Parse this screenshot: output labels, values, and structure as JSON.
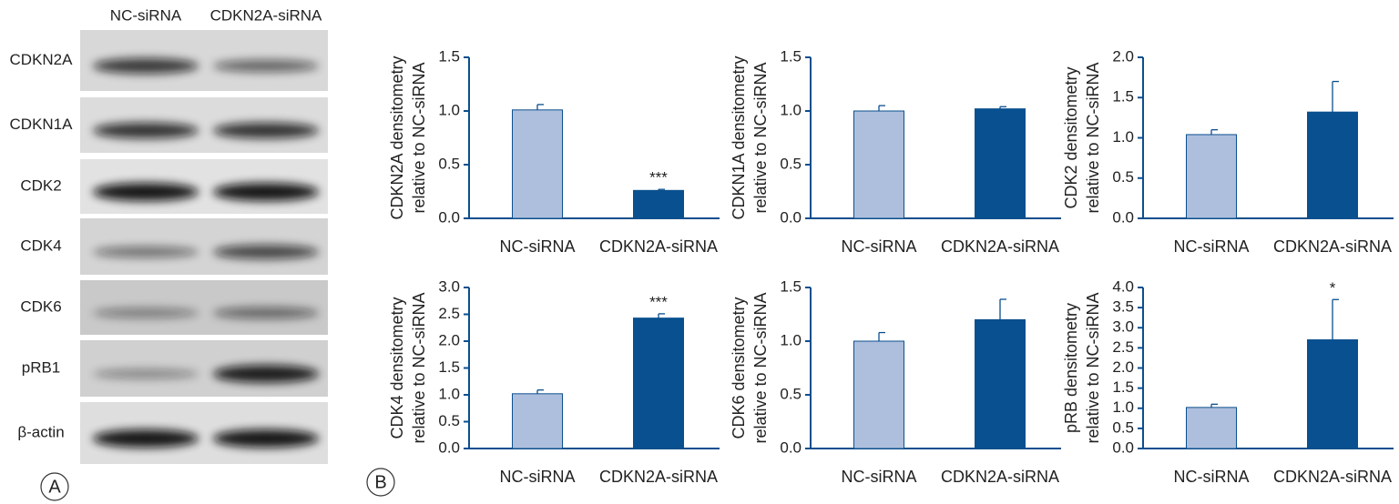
{
  "blot": {
    "label": "A",
    "lanes": [
      "NC-siRNA",
      "CDKN2A-siRNA"
    ],
    "proteins": [
      "CDKN2A",
      "CDKN1A",
      "CDK2",
      "CDK4",
      "CDK6",
      "pRB1",
      "β-actin"
    ]
  },
  "panel_b_label": "B",
  "chart_data": [
    {
      "type": "bar",
      "y_label": [
        "CDKN2A densitometry",
        "relative to NC-siRNA"
      ],
      "categories": [
        "NC-siRNA",
        "CDKN2A-siRNA"
      ],
      "values": [
        1.01,
        0.26
      ],
      "errors": [
        0.05,
        0.01
      ],
      "significance": [
        null,
        "***"
      ],
      "colors": [
        "#aebfdd",
        "#08508f"
      ],
      "ylim": [
        0,
        1.5
      ],
      "yticks": [
        {
          "value": 0,
          "label": "0.0"
        },
        0.5,
        {
          "value": 1,
          "label": "1.0"
        },
        1.5
      ]
    },
    {
      "type": "bar",
      "y_label": [
        "CDKN1A densitometry",
        "relative to NC-siRNA"
      ],
      "categories": [
        "NC-siRNA",
        "CDKN2A-siRNA"
      ],
      "values": [
        1.0,
        1.02
      ],
      "errors": [
        0.05,
        0.02
      ],
      "significance": [
        null,
        null
      ],
      "colors": [
        "#aebfdd",
        "#08508f"
      ],
      "ylim": [
        0,
        1.5
      ],
      "yticks": [
        {
          "value": 0,
          "label": "0.0"
        },
        0.5,
        {
          "value": 1,
          "label": "1.0"
        },
        1.5
      ]
    },
    {
      "type": "bar",
      "y_label": [
        "CDK2 densitometry",
        "relative to NC-siRNA"
      ],
      "categories": [
        "NC-siRNA",
        "CDKN2A-siRNA"
      ],
      "values": [
        1.04,
        1.32
      ],
      "errors": [
        0.06,
        0.38
      ],
      "significance": [
        null,
        null
      ],
      "colors": [
        "#aebfdd",
        "#08508f"
      ],
      "ylim": [
        0,
        2
      ],
      "yticks": [
        {
          "value": 0,
          "label": "0.0"
        },
        0.5,
        {
          "value": 1,
          "label": "1.0"
        },
        1.5,
        {
          "value": 2,
          "label": "2.0"
        }
      ]
    },
    {
      "type": "bar",
      "y_label": [
        "CDK4 densitometry",
        "relative to NC-siRNA"
      ],
      "categories": [
        "NC-siRNA",
        "CDKN2A-siRNA"
      ],
      "values": [
        1.02,
        2.43
      ],
      "errors": [
        0.07,
        0.08
      ],
      "significance": [
        null,
        "***"
      ],
      "colors": [
        "#aebfdd",
        "#08508f"
      ],
      "ylim": [
        0,
        3
      ],
      "yticks": [
        {
          "value": 0,
          "label": "0.0"
        },
        0.5,
        {
          "value": 1,
          "label": "1.0"
        },
        1.5,
        {
          "value": 2,
          "label": "2.0"
        },
        2.5,
        {
          "value": 3,
          "label": "3.0"
        }
      ]
    },
    {
      "type": "bar",
      "y_label": [
        "CDK6 densitometry",
        "relative to NC-siRNA"
      ],
      "categories": [
        "NC-siRNA",
        "CDKN2A-siRNA"
      ],
      "values": [
        1.0,
        1.2
      ],
      "errors": [
        0.08,
        0.19
      ],
      "significance": [
        null,
        null
      ],
      "colors": [
        "#aebfdd",
        "#08508f"
      ],
      "ylim": [
        0,
        1.5
      ],
      "yticks": [
        {
          "value": 0,
          "label": "0.0"
        },
        0.5,
        {
          "value": 1,
          "label": "1.0"
        },
        1.5
      ]
    },
    {
      "type": "bar",
      "y_label": [
        "pRB densitometry",
        "relative to NC-siRNA"
      ],
      "categories": [
        "NC-siRNA",
        "CDKN2A-siRNA"
      ],
      "values": [
        1.02,
        2.7
      ],
      "errors": [
        0.08,
        1.0
      ],
      "significance": [
        null,
        "*"
      ],
      "colors": [
        "#aebfdd",
        "#08508f"
      ],
      "ylim": [
        0,
        4
      ],
      "yticks": [
        {
          "value": 0,
          "label": "0.0"
        },
        0.5,
        {
          "value": 1,
          "label": "1.0"
        },
        1.5,
        {
          "value": 2,
          "label": "2.0"
        },
        2.5,
        {
          "value": 3,
          "label": "3.0"
        },
        3.5,
        {
          "value": 4,
          "label": "4.0"
        }
      ]
    }
  ]
}
